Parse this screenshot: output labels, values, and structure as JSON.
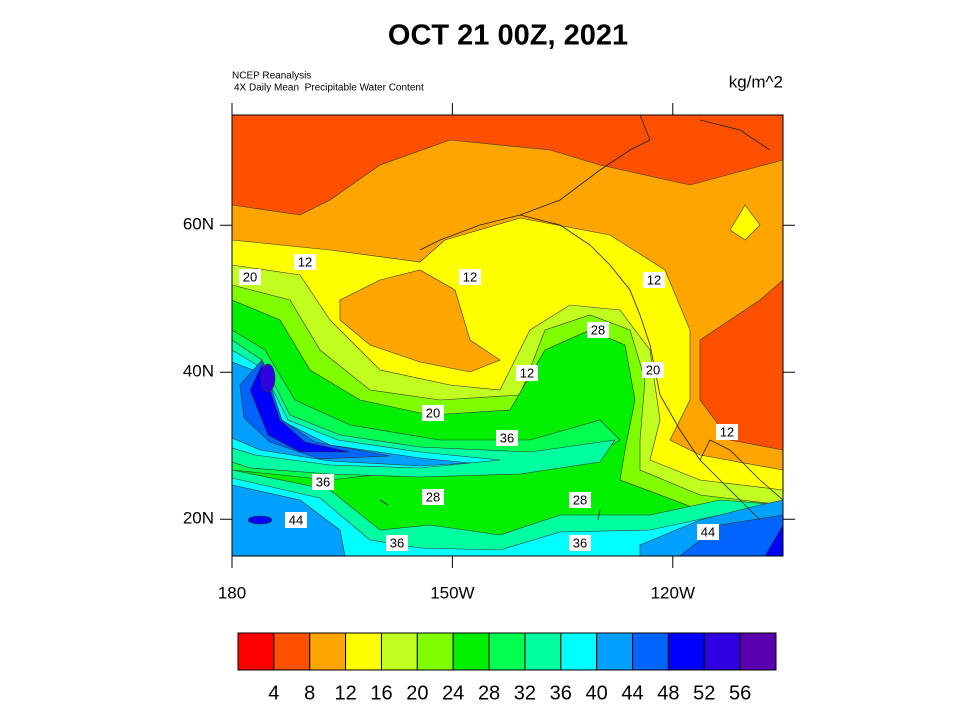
{
  "title": "OCT 21 00Z, 2021",
  "source": "NCEP Reanalysis",
  "description": "4X Daily Mean  Precipitable Water Content",
  "units": "kg/m^2",
  "map": {
    "xlim": [
      180,
      255
    ],
    "ylim": [
      15,
      75
    ],
    "xticks": [
      {
        "value": 180,
        "label": "180"
      },
      {
        "value": 210,
        "label": "150W"
      },
      {
        "value": 240,
        "label": "120W"
      }
    ],
    "yticks": [
      {
        "value": 20,
        "label": "20N"
      },
      {
        "value": 40,
        "label": "40N"
      },
      {
        "value": 60,
        "label": "60N"
      }
    ]
  },
  "contour_labels": [
    20,
    12,
    12,
    12,
    28,
    20,
    12,
    20,
    36,
    12,
    36,
    28,
    28,
    44,
    44,
    36,
    36
  ],
  "colorbar": {
    "levels": [
      4,
      8,
      12,
      16,
      20,
      24,
      28,
      32,
      36,
      40,
      44,
      48,
      52,
      56
    ],
    "colors": [
      "#ff0000",
      "#ff5000",
      "#ffa500",
      "#ffff00",
      "#c0ff20",
      "#80ff00",
      "#00f000",
      "#00ff50",
      "#00ffa0",
      "#00ffff",
      "#00a0ff",
      "#0064ff",
      "#0000ff",
      "#3000e0",
      "#5a00b0"
    ]
  }
}
